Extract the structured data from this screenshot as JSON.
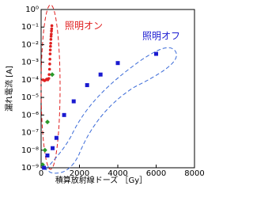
{
  "chart_data": {
    "type": "scatter",
    "x_label": "積算放射線ドーズ ［Gy］",
    "y_label": "漏れ電流 [A]",
    "xlim": [
      0,
      8000
    ],
    "xticks": [
      0,
      2000,
      4000,
      6000,
      8000
    ],
    "ylim": [
      1e-09,
      1
    ],
    "log_y": true,
    "yticks": [
      {
        "value": 1e-09,
        "label": "10⁻⁹"
      },
      {
        "value": 1e-08,
        "label": "10⁻⁸"
      },
      {
        "value": 1e-07,
        "label": "10⁻⁷"
      },
      {
        "value": 1e-06,
        "label": "10⁻⁶"
      },
      {
        "value": 1e-05,
        "label": "10⁻⁵"
      },
      {
        "value": 0.0001,
        "label": "10⁻⁴"
      },
      {
        "value": 0.001,
        "label": "10⁻³"
      },
      {
        "value": 0.01,
        "label": "10⁻²"
      },
      {
        "value": 0.1,
        "label": "10⁻¹"
      },
      {
        "value": 1,
        "label": "10⁰"
      }
    ],
    "series": [
      {
        "name": "照明オン",
        "color": "#e02020",
        "marker": "circle",
        "x": [
          100,
          180,
          250,
          300,
          350,
          400,
          420,
          440,
          450,
          460,
          470,
          480,
          490,
          500,
          510,
          520,
          530,
          540,
          550,
          560
        ],
        "values": [
          0.0001,
          9e-05,
          0.0001,
          0.00011,
          0.0001,
          0.00012,
          0.0002,
          0.0004,
          0.0008,
          0.0015,
          0.003,
          0.005,
          0.008,
          0.012,
          0.02,
          0.03,
          0.04,
          0.06,
          0.08,
          0.12
        ]
      },
      {
        "color": "#2a9a2a",
        "marker": "diamond",
        "x": [
          80,
          200,
          330,
          580
        ],
        "values": [
          1.5e-09,
          1e-08,
          4e-07,
          0.0002
        ]
      },
      {
        "name": "照明オフ",
        "color": "#1a1ad0",
        "marker": "square",
        "x": [
          150,
          330,
          600,
          800,
          1200,
          1700,
          2400,
          3100,
          4000,
          6000
        ],
        "values": [
          1e-09,
          5e-09,
          1.3e-08,
          5e-08,
          1e-06,
          6e-06,
          5e-05,
          0.0002,
          0.0009,
          0.003
        ]
      }
    ]
  }
}
